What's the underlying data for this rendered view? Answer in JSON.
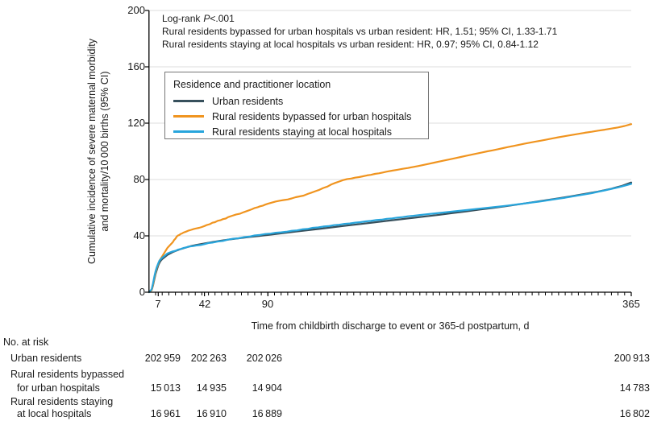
{
  "chart_data": {
    "type": "line",
    "title": "",
    "xlabel": "Time from childbirth discharge to event or 365-d postpartum, d",
    "ylabel_line1": "Cumulative incidence of severe maternal morbidity",
    "ylabel_line2": "and mortality/10 000 births (95% CI)",
    "xlim": [
      0,
      365
    ],
    "ylim": [
      0,
      200
    ],
    "xticks": [
      7,
      42,
      90,
      365
    ],
    "xtick_labels": [
      "7",
      "42",
      "90",
      "365"
    ],
    "xminor_step": 5,
    "yticks": [
      0,
      40,
      80,
      120,
      160,
      200
    ],
    "ytick_labels": [
      "0",
      "40",
      "80",
      "120",
      "160",
      "200"
    ],
    "grid": "horizontal",
    "gridline_color": "#dcdcdc",
    "legend_position": "upper-left-box",
    "legend_title": "Residence and practitioner location",
    "stats": {
      "logrank_label": "Log-rank",
      "p_symbol": "P",
      "p_value": "<.001",
      "hr_lines": [
        "Rural residents bypassed for urban hospitals vs urban resident: HR, 1.51; 95% CI, 1.33-1.71",
        "Rural residents staying at local hospitals vs urban resident: HR, 0.97; 95% CI, 0.84-1.12"
      ]
    },
    "series": [
      {
        "name": "Urban residents",
        "color": "#37505C",
        "points": [
          [
            0,
            0
          ],
          [
            2,
            1.5
          ],
          [
            3,
            4.5
          ],
          [
            4,
            9
          ],
          [
            5,
            13
          ],
          [
            6,
            16
          ],
          [
            7,
            19
          ],
          [
            8,
            21
          ],
          [
            9,
            22.5
          ],
          [
            10,
            23.5
          ],
          [
            12,
            25
          ],
          [
            14,
            26.5
          ],
          [
            16,
            27.5
          ],
          [
            18,
            28.5
          ],
          [
            21,
            29.6
          ],
          [
            24,
            30.6
          ],
          [
            28,
            31.8
          ],
          [
            32,
            32.8
          ],
          [
            36,
            33.6
          ],
          [
            42,
            34.6
          ],
          [
            48,
            35.6
          ],
          [
            54,
            36.5
          ],
          [
            60,
            37.3
          ],
          [
            68,
            38.3
          ],
          [
            76,
            39.2
          ],
          [
            84,
            40
          ],
          [
            90,
            40.6
          ],
          [
            100,
            41.8
          ],
          [
            110,
            42.9
          ],
          [
            120,
            44
          ],
          [
            130,
            45.1
          ],
          [
            140,
            46.2
          ],
          [
            150,
            47.3
          ],
          [
            160,
            48.4
          ],
          [
            170,
            49.5
          ],
          [
            180,
            50.6
          ],
          [
            190,
            51.7
          ],
          [
            200,
            52.8
          ],
          [
            210,
            53.9
          ],
          [
            220,
            55
          ],
          [
            230,
            56.2
          ],
          [
            240,
            57.4
          ],
          [
            250,
            58.6
          ],
          [
            260,
            59.8
          ],
          [
            270,
            61.1
          ],
          [
            280,
            62.4
          ],
          [
            290,
            63.8
          ],
          [
            300,
            65.2
          ],
          [
            310,
            66.7
          ],
          [
            320,
            68.2
          ],
          [
            330,
            69.8
          ],
          [
            340,
            71.5
          ],
          [
            350,
            73.5
          ],
          [
            358,
            75.5
          ],
          [
            365,
            77.9
          ]
        ]
      },
      {
        "name": "Rural residents bypassed for urban hospitals",
        "color": "#F0941F",
        "points": [
          [
            0,
            0
          ],
          [
            2,
            1.5
          ],
          [
            3,
            5
          ],
          [
            4,
            10
          ],
          [
            5,
            14
          ],
          [
            6,
            17.5
          ],
          [
            7,
            20
          ],
          [
            8,
            22.5
          ],
          [
            9,
            24
          ],
          [
            10,
            25.5
          ],
          [
            11,
            27
          ],
          [
            12,
            28.5
          ],
          [
            13,
            30
          ],
          [
            14,
            31.5
          ],
          [
            15,
            32.5
          ],
          [
            16,
            33.5
          ],
          [
            17,
            34.5
          ],
          [
            18,
            35.5
          ],
          [
            19,
            37
          ],
          [
            20,
            38
          ],
          [
            21,
            39.5
          ],
          [
            22,
            40.3
          ],
          [
            23,
            40.6
          ],
          [
            24,
            41.4
          ],
          [
            25,
            41.7
          ],
          [
            26,
            42.3
          ],
          [
            28,
            43
          ],
          [
            30,
            43.8
          ],
          [
            32,
            44.3
          ],
          [
            34,
            44.9
          ],
          [
            36,
            45.3
          ],
          [
            38,
            45.7
          ],
          [
            40,
            46.3
          ],
          [
            42,
            47
          ],
          [
            44,
            47.8
          ],
          [
            46,
            48.3
          ],
          [
            48,
            49.3
          ],
          [
            50,
            49.7
          ],
          [
            52,
            50.7
          ],
          [
            54,
            51.1
          ],
          [
            56,
            51.9
          ],
          [
            58,
            52.3
          ],
          [
            60,
            53.3
          ],
          [
            63,
            54.3
          ],
          [
            66,
            55.2
          ],
          [
            69,
            55.8
          ],
          [
            72,
            56.9
          ],
          [
            75,
            57.9
          ],
          [
            78,
            58.9
          ],
          [
            80,
            59.8
          ],
          [
            82,
            60.2
          ],
          [
            84,
            61
          ],
          [
            86,
            61.4
          ],
          [
            88,
            62.2
          ],
          [
            90,
            62.8
          ],
          [
            93,
            63.6
          ],
          [
            96,
            64.4
          ],
          [
            99,
            65
          ],
          [
            102,
            65.4
          ],
          [
            105,
            65.8
          ],
          [
            108,
            66.6
          ],
          [
            111,
            67.4
          ],
          [
            114,
            68
          ],
          [
            117,
            68.6
          ],
          [
            120,
            69.7
          ],
          [
            123,
            70.7
          ],
          [
            126,
            71.7
          ],
          [
            129,
            72.7
          ],
          [
            132,
            74
          ],
          [
            135,
            75
          ],
          [
            138,
            76.5
          ],
          [
            141,
            77.6
          ],
          [
            144,
            78.6
          ],
          [
            147,
            79.6
          ],
          [
            150,
            80.3
          ],
          [
            153,
            80.7
          ],
          [
            156,
            81.3
          ],
          [
            159,
            81.7
          ],
          [
            162,
            82.3
          ],
          [
            165,
            82.9
          ],
          [
            168,
            83.3
          ],
          [
            171,
            84
          ],
          [
            174,
            84.4
          ],
          [
            177,
            85
          ],
          [
            180,
            85.6
          ],
          [
            184,
            86.3
          ],
          [
            188,
            86.9
          ],
          [
            192,
            87.6
          ],
          [
            196,
            88.2
          ],
          [
            200,
            88.9
          ],
          [
            204,
            89.6
          ],
          [
            208,
            90.4
          ],
          [
            212,
            91.2
          ],
          [
            216,
            92
          ],
          [
            220,
            92.8
          ],
          [
            224,
            93.6
          ],
          [
            228,
            94.4
          ],
          [
            232,
            95.2
          ],
          [
            236,
            96
          ],
          [
            240,
            96.8
          ],
          [
            244,
            97.6
          ],
          [
            248,
            98.4
          ],
          [
            252,
            99.2
          ],
          [
            256,
            100
          ],
          [
            260,
            100.7
          ],
          [
            264,
            101.5
          ],
          [
            268,
            102.3
          ],
          [
            272,
            103.1
          ],
          [
            276,
            103.8
          ],
          [
            280,
            104.6
          ],
          [
            284,
            105.4
          ],
          [
            288,
            106.1
          ],
          [
            292,
            106.8
          ],
          [
            296,
            107.5
          ],
          [
            300,
            108.2
          ],
          [
            305,
            109.1
          ],
          [
            310,
            110
          ],
          [
            315,
            110.8
          ],
          [
            320,
            111.6
          ],
          [
            325,
            112.4
          ],
          [
            330,
            113.2
          ],
          [
            335,
            113.9
          ],
          [
            340,
            114.7
          ],
          [
            345,
            115.4
          ],
          [
            350,
            116.2
          ],
          [
            355,
            117
          ],
          [
            360,
            118
          ],
          [
            365,
            119.3
          ]
        ]
      },
      {
        "name": "Rural residents staying at local hospitals",
        "color": "#28A5DC",
        "points": [
          [
            0,
            0
          ],
          [
            2,
            2
          ],
          [
            3,
            6
          ],
          [
            4,
            11
          ],
          [
            5,
            15
          ],
          [
            6,
            18
          ],
          [
            7,
            20.5
          ],
          [
            8,
            22.5
          ],
          [
            10,
            24.5
          ],
          [
            12,
            26
          ],
          [
            14,
            27.5
          ],
          [
            16,
            28.3
          ],
          [
            18,
            29
          ],
          [
            20,
            29.4
          ],
          [
            22,
            30.2
          ],
          [
            24,
            30.6
          ],
          [
            26,
            31.4
          ],
          [
            28,
            31.7
          ],
          [
            30,
            32.4
          ],
          [
            33,
            32.7
          ],
          [
            36,
            33.2
          ],
          [
            39,
            33.5
          ],
          [
            42,
            34.1
          ],
          [
            45,
            34.9
          ],
          [
            48,
            35.2
          ],
          [
            52,
            36
          ],
          [
            56,
            36.4
          ],
          [
            60,
            37.4
          ],
          [
            64,
            38
          ],
          [
            68,
            38.3
          ],
          [
            72,
            39.1
          ],
          [
            76,
            39.5
          ],
          [
            80,
            40.3
          ],
          [
            84,
            40.7
          ],
          [
            88,
            41.3
          ],
          [
            92,
            41.6
          ],
          [
            96,
            42.2
          ],
          [
            100,
            42.5
          ],
          [
            104,
            42.9
          ],
          [
            108,
            43.6
          ],
          [
            112,
            43.9
          ],
          [
            116,
            44.6
          ],
          [
            120,
            44.9
          ],
          [
            124,
            45.7
          ],
          [
            128,
            46
          ],
          [
            132,
            46.6
          ],
          [
            136,
            46.9
          ],
          [
            140,
            47.6
          ],
          [
            144,
            47.9
          ],
          [
            148,
            48.5
          ],
          [
            152,
            48.8
          ],
          [
            156,
            49.4
          ],
          [
            160,
            49.7
          ],
          [
            164,
            50.3
          ],
          [
            168,
            50.6
          ],
          [
            172,
            51.2
          ],
          [
            176,
            51.5
          ],
          [
            180,
            52.1
          ],
          [
            184,
            52.4
          ],
          [
            188,
            53
          ],
          [
            192,
            53.3
          ],
          [
            196,
            53.9
          ],
          [
            200,
            54.2
          ],
          [
            205,
            54.8
          ],
          [
            210,
            55.3
          ],
          [
            215,
            55.8
          ],
          [
            220,
            56.3
          ],
          [
            225,
            56.8
          ],
          [
            230,
            57.3
          ],
          [
            235,
            57.8
          ],
          [
            240,
            58.3
          ],
          [
            245,
            58.8
          ],
          [
            250,
            59.3
          ],
          [
            255,
            59.8
          ],
          [
            260,
            60.3
          ],
          [
            265,
            60.8
          ],
          [
            270,
            61.3
          ],
          [
            275,
            61.9
          ],
          [
            280,
            62.5
          ],
          [
            285,
            63.1
          ],
          [
            290,
            63.7
          ],
          [
            295,
            64.3
          ],
          [
            300,
            65
          ],
          [
            305,
            65.7
          ],
          [
            310,
            66.4
          ],
          [
            315,
            67.1
          ],
          [
            320,
            67.9
          ],
          [
            325,
            68.7
          ],
          [
            330,
            69.5
          ],
          [
            335,
            70.3
          ],
          [
            340,
            71.3
          ],
          [
            345,
            72.3
          ],
          [
            350,
            73.3
          ],
          [
            355,
            74.4
          ],
          [
            360,
            75.6
          ],
          [
            365,
            76.9
          ]
        ]
      }
    ]
  },
  "risk_table": {
    "heading": "No. at risk",
    "rows": [
      {
        "label_lines": [
          "Urban residents"
        ],
        "values": [
          "202 959",
          "202 263",
          "202 026",
          "200 913"
        ]
      },
      {
        "label_lines": [
          "Rural residents bypassed",
          "for urban hospitals"
        ],
        "values": [
          "15 013",
          "14 935",
          "14 904",
          "14 783"
        ]
      },
      {
        "label_lines": [
          "Rural residents staying",
          "at local hospitals"
        ],
        "values": [
          "16 961",
          "16 910",
          "16 889",
          "16 802"
        ]
      }
    ]
  }
}
